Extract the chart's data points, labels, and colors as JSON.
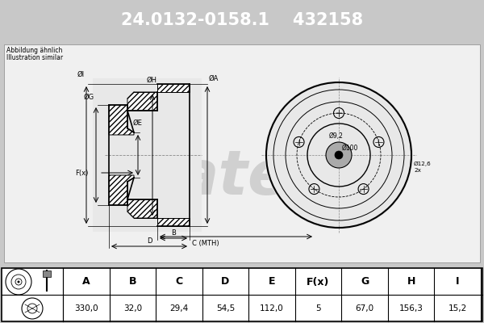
{
  "part_number": "24.0132-0158.1",
  "oem_number": "432158",
  "subtitle1": "Abbildung ähnlich",
  "subtitle2": "Illustration similar",
  "header_bg": "#0000cc",
  "header_text_color": "#ffffff",
  "bg_color": "#c8c8c8",
  "diagram_bg": "#c8c8c8",
  "table_bg": "#ffffff",
  "table_headers": [
    "A",
    "B",
    "C",
    "D",
    "E",
    "F(x)",
    "G",
    "H",
    "I"
  ],
  "table_values": [
    "330,0",
    "32,0",
    "29,4",
    "54,5",
    "112,0",
    "5",
    "67,0",
    "156,3",
    "15,2"
  ],
  "front_labels": [
    "Ø100",
    "Ø12,6\n2x",
    "Ø9,2"
  ],
  "side_labels": [
    "ØI",
    "ØG",
    "ØE",
    "ØH",
    "ØA"
  ],
  "bottom_labels": [
    "B",
    "C (MTH)",
    "D"
  ],
  "fx_label": "F(x)"
}
